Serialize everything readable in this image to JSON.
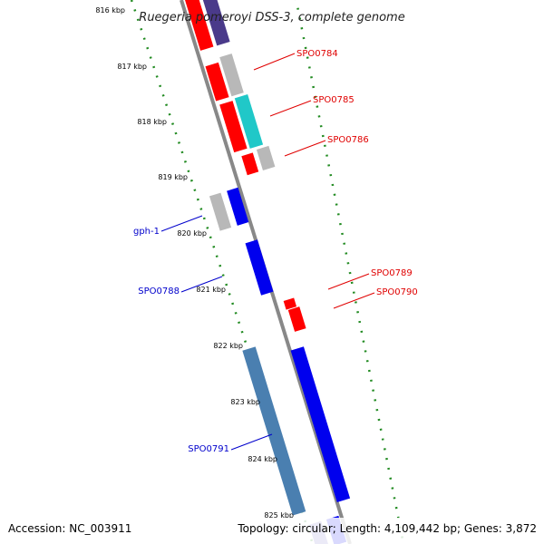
{
  "title": "Ruegeria pomeroyi DSS-3, complete genome",
  "footer": {
    "accession": "Accession: NC_003911",
    "summary": "Topology: circular; Length: 4,109,442 bp; Genes: 3,872"
  },
  "scale_ticks": [
    "816 kbp",
    "817 kbp",
    "818 kbp",
    "819 kbp",
    "820 kbp",
    "821 kbp",
    "822 kbp",
    "823 kbp",
    "824 kbp",
    "825 kbp"
  ],
  "forward_labels": [
    "SPO0784",
    "SPO0785",
    "SPO0786",
    "SPO0789",
    "SPO0790"
  ],
  "reverse_labels": [
    "gph-1",
    "SPO0788",
    "SPO0791"
  ],
  "colors": {
    "forward_label": "#e00000",
    "reverse_label": "#0000cc",
    "backbone": "#888888",
    "tick": "#228b22",
    "red_gene": "#ff0000",
    "blue_gene": "#0000ee",
    "grey_gene": "#b8b8b8",
    "cyan_gene": "#20c8c8",
    "purple_gene": "#4a3a8a",
    "steel_gene": "#4a7fb0"
  }
}
